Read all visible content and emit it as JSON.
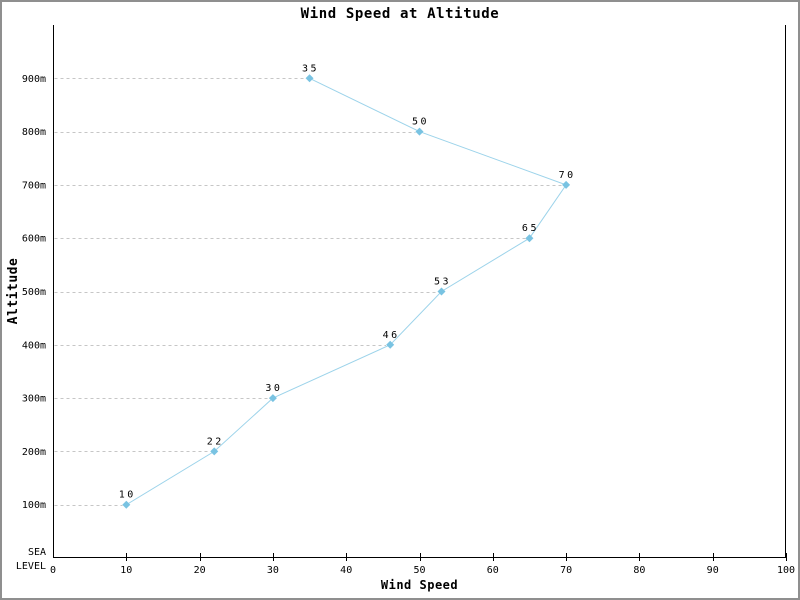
{
  "chart_data": {
    "type": "line",
    "title": "Wind Speed at Altitude",
    "xlabel": "Wind Speed",
    "ylabel": "Altitude",
    "series": [
      {
        "name": "wind-speed-profile",
        "x": [
          10,
          22,
          30,
          46,
          53,
          65,
          70,
          50,
          35
        ],
        "altitude_m": [
          100,
          200,
          300,
          400,
          500,
          600,
          700,
          800,
          900
        ],
        "point_labels": [
          "10",
          "22",
          "30",
          "46",
          "53",
          "65",
          "70",
          "50",
          "35"
        ]
      }
    ],
    "xlim": [
      0,
      100
    ],
    "ylim": [
      0,
      1000
    ],
    "x_ticks": [
      0,
      10,
      20,
      30,
      40,
      50,
      60,
      70,
      80,
      90,
      100
    ],
    "y_ticks": [
      {
        "value": 100,
        "label": "100m"
      },
      {
        "value": 200,
        "label": "200m"
      },
      {
        "value": 300,
        "label": "300m"
      },
      {
        "value": 400,
        "label": "400m"
      },
      {
        "value": 500,
        "label": "500m"
      },
      {
        "value": 600,
        "label": "600m"
      },
      {
        "value": 700,
        "label": "700m"
      },
      {
        "value": 800,
        "label": "800m"
      },
      {
        "value": 900,
        "label": "900m"
      }
    ],
    "sea_level_label_lines": [
      "SEA",
      "LEVEL"
    ],
    "legend_position": "none",
    "grid": "dashed horizontal leader lines from y-axis to each data point",
    "marker_shape": "diamond",
    "colors": {
      "line": "#9cd3ea",
      "marker": "#79c3e2",
      "grid": "#c6c6c6",
      "axis": "#000000",
      "text": "#000000",
      "border": "#8f8f8f",
      "background": "#ffffff"
    }
  }
}
